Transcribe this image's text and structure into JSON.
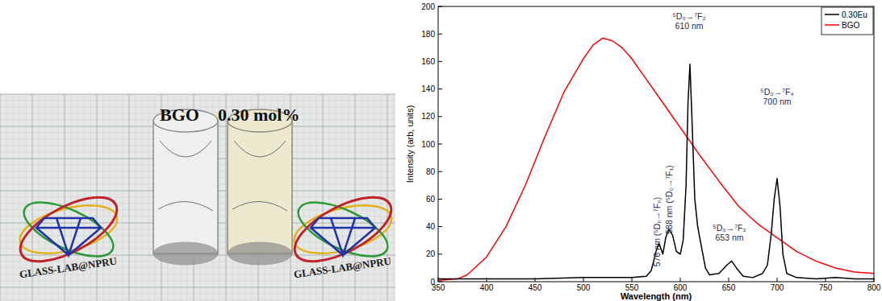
{
  "photo": {
    "labels": [
      "BGO",
      "0.30 mol%"
    ],
    "logo_text": "GLASS-LAB@NPRU"
  },
  "chart_data": {
    "type": "line",
    "x_label": "Wavelength (nm)",
    "y_label": "Intensity (arb, units)",
    "xlim": [
      350,
      800
    ],
    "xticks": [
      350,
      400,
      450,
      500,
      550,
      600,
      650,
      700,
      750,
      800
    ],
    "ylim": [
      0,
      200
    ],
    "yticks": [
      0,
      20,
      40,
      60,
      80,
      100,
      120,
      140,
      160,
      180,
      200
    ],
    "legend": "top-right",
    "series": [
      {
        "name": "0.30Eu",
        "color": "#000000",
        "x": [
          350,
          400,
          450,
          500,
          550,
          565,
          570,
          575,
          578,
          582,
          585,
          588,
          592,
          596,
          600,
          603,
          606,
          608,
          610,
          612,
          615,
          618,
          622,
          626,
          630,
          640,
          648,
          653,
          658,
          665,
          675,
          685,
          690,
          694,
          697,
          700,
          703,
          706,
          710,
          720,
          740,
          760,
          780,
          800
        ],
        "values": [
          2,
          2,
          2,
          3,
          3,
          4,
          8,
          22,
          28,
          20,
          32,
          38,
          34,
          22,
          20,
          30,
          70,
          130,
          158,
          120,
          60,
          40,
          25,
          10,
          5,
          6,
          12,
          15,
          10,
          4,
          3,
          6,
          12,
          35,
          60,
          75,
          55,
          20,
          6,
          3,
          2,
          3,
          2,
          2
        ]
      },
      {
        "name": "BGO",
        "color": "#ff0000",
        "x": [
          350,
          370,
          380,
          400,
          420,
          440,
          460,
          480,
          500,
          510,
          520,
          530,
          540,
          550,
          560,
          580,
          600,
          620,
          640,
          660,
          680,
          700,
          720,
          740,
          760,
          780,
          800
        ],
        "values": [
          1,
          2,
          5,
          18,
          40,
          70,
          105,
          138,
          162,
          172,
          177,
          175,
          170,
          162,
          152,
          132,
          112,
          92,
          73,
          55,
          42,
          32,
          22,
          15,
          10,
          7,
          6
        ]
      }
    ],
    "annotations": [
      {
        "lines": [
          "⁵D₀→⁷F₂",
          "610 nm"
        ]
      },
      {
        "lines": [
          "⁵D₀→⁷F₄",
          "700 nm"
        ]
      },
      {
        "lines": [
          "576 nm (⁵D₀→⁷F₀)"
        ]
      },
      {
        "lines": [
          "588 nm (⁵D₀→⁷F₁)"
        ]
      },
      {
        "lines": [
          "⁵D₀→⁷F₃",
          "653 nm"
        ]
      }
    ]
  }
}
